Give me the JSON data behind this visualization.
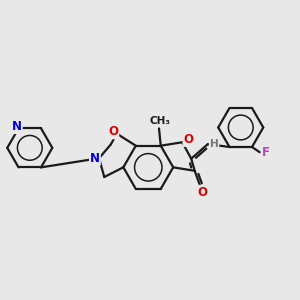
{
  "bg_color": "#e8e8e8",
  "bond_color": "#1a1a1a",
  "bond_width": 1.6,
  "atom_colors": {
    "O": "#e00000",
    "N": "#0000e0",
    "F": "#bb44bb",
    "H": "#777777",
    "C": "#1a1a1a"
  },
  "font_size": 8.5,
  "title": ""
}
